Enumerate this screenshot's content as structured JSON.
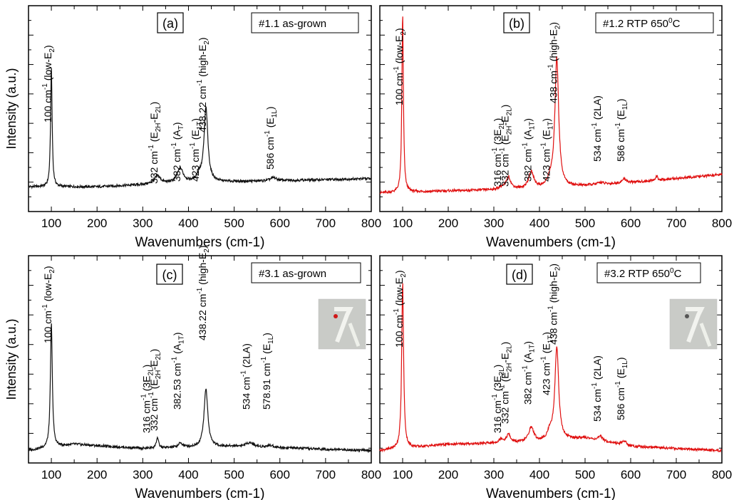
{
  "figure": {
    "panels": [
      {
        "id": "a",
        "label": "(a)",
        "sample": "#1.1 as-grown",
        "xlabel": "Wavenumbers (cm-1)",
        "ylabel": "Intensity (a.u.)",
        "ylabel_visible": true,
        "inset_image": false,
        "color": "#111111",
        "annotations": [
          {
            "x": 100,
            "base": "100 cm",
            "sup": "-1",
            "rest": " (low-E",
            "sub": "2",
            "tail": ")"
          },
          {
            "x": 332,
            "base": "332 cm",
            "sup": "-1",
            "rest": " (E",
            "sub": "2H",
            "mid": "-E",
            "sub2": "2L",
            "tail": ")"
          },
          {
            "x": 382,
            "base": "382 cm",
            "sup": "-1",
            "rest": " (A",
            "sub": "T",
            "tail": ")"
          },
          {
            "x": 423,
            "base": "423 cm",
            "sup": "-1",
            "rest": " (E",
            "sub": "1T",
            "tail": ")"
          },
          {
            "x": 438.22,
            "base": "438.22 cm",
            "sup": "-1",
            "rest": " (high-E",
            "sub": "2",
            "tail": ")"
          },
          {
            "x": 586,
            "base": "586 cm",
            "sup": "-1",
            "rest": " (E",
            "sub": "1L",
            "tail": ")"
          }
        ]
      },
      {
        "id": "b",
        "label": "(b)",
        "sample": "#1.2  RTP 650",
        "sample_sup": "0",
        "sample_tail": "C",
        "xlabel": "Wavenumbers (cm-1)",
        "ylabel": "",
        "ylabel_visible": false,
        "inset_image": false,
        "color": "#e01010",
        "annotations": [
          {
            "x": 100,
            "base": "100 cm",
            "sup": "-1",
            "rest": " (low-E",
            "sub": "2",
            "tail": ")"
          },
          {
            "x": 316,
            "base": "316 cm",
            "sup": "-1",
            "rest": " (3E",
            "sub": "2L",
            "tail": ")"
          },
          {
            "x": 332,
            "base": "332 cm",
            "sup": "-1",
            "rest": " (E",
            "sub": "2H",
            "mid": "-E",
            "sub2": "2L",
            "tail": ")"
          },
          {
            "x": 382,
            "base": "382 cm",
            "sup": "-1",
            "rest": " (A",
            "sub": "1T",
            "tail": ")"
          },
          {
            "x": 423,
            "base": "423 cm",
            "sup": "-1",
            "rest": " (E",
            "sub": "1T",
            "tail": ")"
          },
          {
            "x": 438,
            "base": "438 cm",
            "sup": "-1",
            "rest": " (high-E",
            "sub": "2",
            "tail": ")"
          },
          {
            "x": 534,
            "base": "534 cm",
            "sup": "-1",
            "rest": " (2LA)"
          },
          {
            "x": 586,
            "base": "586 cm",
            "sup": "-1",
            "rest": " (E",
            "sub": "1L",
            "tail": ")"
          }
        ]
      },
      {
        "id": "c",
        "label": "(c)",
        "sample": "#3.1 as-grown",
        "xlabel": "Wavenumbers (cm-1)",
        "ylabel": "Intensity (a.u.)",
        "ylabel_visible": true,
        "inset_image": true,
        "color": "#111111",
        "annotations": [
          {
            "x": 100,
            "base": "100 cm",
            "sup": "-1",
            "rest": " (low-E",
            "sub": "2",
            "tail": ")"
          },
          {
            "x": 316,
            "base": "316 cm",
            "sup": "-1",
            "rest": " (3E",
            "sub": "2L",
            "tail": ")"
          },
          {
            "x": 332,
            "base": "332 cm",
            "sup": "-1",
            "rest": " (E",
            "sub": "2H",
            "mid": "-E",
            "sub2": "2L",
            "tail": ")"
          },
          {
            "x": 382.53,
            "base": "382.53 cm",
            "sup": "-1",
            "rest": " (A",
            "sub": "1T",
            "tail": ")"
          },
          {
            "x": 438.22,
            "base": "438.22 cm",
            "sup": "-1",
            "rest": " (high-E",
            "sub": "2",
            "tail": ")"
          },
          {
            "x": 534,
            "base": "534 cm",
            "sup": "-1",
            "rest": " (2LA)"
          },
          {
            "x": 578.91,
            "base": "578.91 cm",
            "sup": "-1",
            "rest": " (E",
            "sub": "1L",
            "tail": ")"
          }
        ]
      },
      {
        "id": "d",
        "label": "(d)",
        "sample": "#3.2 RTP 650",
        "sample_sup": "0",
        "sample_tail": "C",
        "xlabel": "Wavenumbers (cm-1)",
        "ylabel": "",
        "ylabel_visible": false,
        "inset_image": true,
        "color": "#e01010",
        "annotations": [
          {
            "x": 100,
            "base": "100 cm",
            "sup": "-1",
            "rest": " (low-E",
            "sub": "2",
            "tail": ")"
          },
          {
            "x": 316,
            "base": "316 cm",
            "sup": "-1",
            "rest": " (3E",
            "sub": "2L",
            "tail": ")"
          },
          {
            "x": 332,
            "base": "332 cm",
            "sup": "-1",
            "rest": " (E",
            "sub": "2H",
            "mid": "-E",
            "sub2": "2L",
            "tail": ")"
          },
          {
            "x": 382,
            "base": "382 cm",
            "sup": "-1",
            "rest": " (A",
            "sub": "1T",
            "tail": ")"
          },
          {
            "x": 423,
            "base": "423 cm",
            "sup": "-1",
            "rest": " (E",
            "sub": "1T",
            "tail": ")"
          },
          {
            "x": 438,
            "base": "438 cm",
            "sup": "-1",
            "rest": " (high-E",
            "sub": "2",
            "tail": ")"
          },
          {
            "x": 534,
            "base": "534 cm",
            "sup": "-1",
            "rest": " (2LA)"
          },
          {
            "x": 586,
            "base": "586 cm",
            "sup": "-1",
            "rest": " (E",
            "sub": "1L",
            "tail": ")"
          }
        ]
      }
    ]
  },
  "chart_data": [
    {
      "type": "line",
      "panel": "a",
      "xlabel": "Wavenumbers (cm-1)",
      "ylabel": "Intensity (a.u.)",
      "xlim": [
        50,
        800
      ],
      "ylim": [
        0,
        1
      ],
      "xticks": [
        100,
        200,
        300,
        400,
        500,
        600,
        700,
        800
      ],
      "yticks_labeled": false,
      "baseline": [
        [
          50,
          0.12
        ],
        [
          200,
          0.12
        ],
        [
          400,
          0.14
        ],
        [
          600,
          0.15
        ],
        [
          800,
          0.16
        ]
      ],
      "peaks": [
        {
          "x": 100,
          "height": 0.58,
          "width": 2
        },
        {
          "x": 332,
          "height": 0.04,
          "width": 8
        },
        {
          "x": 382,
          "height": 0.07,
          "width": 8
        },
        {
          "x": 423,
          "height": 0.03,
          "width": 6
        },
        {
          "x": 438.22,
          "height": 0.36,
          "width": 5
        },
        {
          "x": 586,
          "height": 0.015,
          "width": 8
        }
      ]
    },
    {
      "type": "line",
      "panel": "b",
      "xlabel": "Wavenumbers (cm-1)",
      "ylabel": "",
      "xlim": [
        50,
        800
      ],
      "ylim": [
        0,
        1
      ],
      "xticks": [
        100,
        200,
        300,
        400,
        500,
        600,
        700,
        800
      ],
      "yticks_labeled": false,
      "baseline": [
        [
          50,
          0.09
        ],
        [
          200,
          0.1
        ],
        [
          400,
          0.11
        ],
        [
          600,
          0.14
        ],
        [
          800,
          0.18
        ]
      ],
      "peaks": [
        {
          "x": 100,
          "height": 0.87,
          "width": 2
        },
        {
          "x": 316,
          "height": 0.01,
          "width": 6
        },
        {
          "x": 332,
          "height": 0.06,
          "width": 6
        },
        {
          "x": 382,
          "height": 0.08,
          "width": 7
        },
        {
          "x": 423,
          "height": 0.03,
          "width": 6
        },
        {
          "x": 438,
          "height": 0.63,
          "width": 5
        },
        {
          "x": 534,
          "height": 0.01,
          "width": 8
        },
        {
          "x": 586,
          "height": 0.02,
          "width": 6
        },
        {
          "x": 657,
          "height": 0.02,
          "width": 3
        }
      ]
    },
    {
      "type": "line",
      "panel": "c",
      "xlabel": "Wavenumbers (cm-1)",
      "ylabel": "Intensity (a.u.)",
      "xlim": [
        50,
        800
      ],
      "ylim": [
        0,
        1
      ],
      "xticks": [
        100,
        200,
        300,
        400,
        500,
        600,
        700,
        800
      ],
      "yticks_labeled": false,
      "baseline": [
        [
          50,
          0.06
        ],
        [
          150,
          0.09
        ],
        [
          300,
          0.07
        ],
        [
          500,
          0.08
        ],
        [
          800,
          0.06
        ]
      ],
      "peaks": [
        {
          "x": 100,
          "height": 0.6,
          "width": 2.5
        },
        {
          "x": 332,
          "height": 0.05,
          "width": 3
        },
        {
          "x": 382.53,
          "height": 0.02,
          "width": 6
        },
        {
          "x": 438.22,
          "height": 0.28,
          "width": 5
        },
        {
          "x": 534,
          "height": 0.02,
          "width": 10
        },
        {
          "x": 578.91,
          "height": 0.01,
          "width": 8
        }
      ]
    },
    {
      "type": "line",
      "panel": "d",
      "xlabel": "Wavenumbers (cm-1)",
      "ylabel": "",
      "xlim": [
        50,
        800
      ],
      "ylim": [
        0,
        1
      ],
      "xticks": [
        100,
        200,
        300,
        400,
        500,
        600,
        700,
        800
      ],
      "yticks_labeled": false,
      "baseline": [
        [
          50,
          0.06
        ],
        [
          200,
          0.09
        ],
        [
          400,
          0.1
        ],
        [
          500,
          0.12
        ],
        [
          600,
          0.08
        ],
        [
          800,
          0.06
        ]
      ],
      "peaks": [
        {
          "x": 100,
          "height": 0.8,
          "width": 2.5
        },
        {
          "x": 316,
          "height": 0.02,
          "width": 5
        },
        {
          "x": 332,
          "height": 0.04,
          "width": 5
        },
        {
          "x": 382,
          "height": 0.07,
          "width": 7
        },
        {
          "x": 423,
          "height": 0.04,
          "width": 6
        },
        {
          "x": 438,
          "height": 0.45,
          "width": 5
        },
        {
          "x": 534,
          "height": 0.02,
          "width": 6
        },
        {
          "x": 586,
          "height": 0.02,
          "width": 6
        }
      ]
    }
  ]
}
